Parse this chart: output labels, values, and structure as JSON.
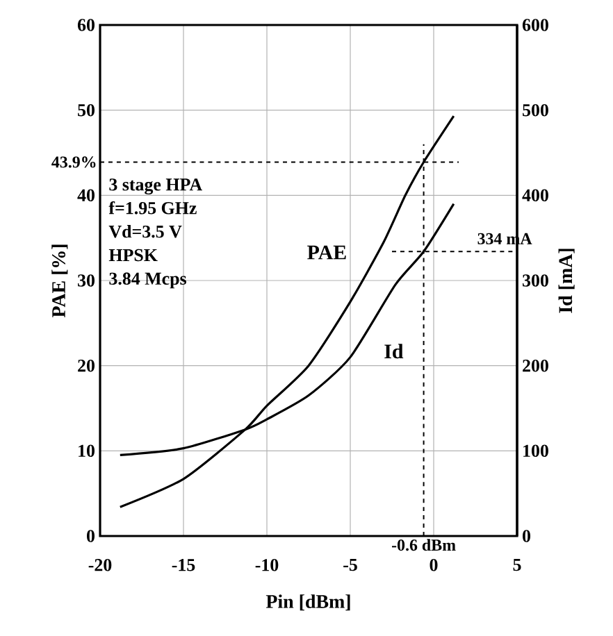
{
  "chart_data": {
    "type": "line",
    "xlabel": "Pin [dBm]",
    "ylabel": "PAE [%]",
    "y2label": "Id [mA]",
    "xlim": [
      -20,
      5
    ],
    "xticks": [
      -20,
      -15,
      -10,
      -5,
      0,
      5
    ],
    "ylim": [
      0,
      60
    ],
    "yticks": [
      0,
      10,
      20,
      30,
      40,
      50,
      60
    ],
    "y2lim": [
      0,
      600
    ],
    "y2ticks": [
      0,
      100,
      200,
      300,
      400,
      500,
      600
    ],
    "grid": true,
    "marker": "none",
    "line_style": "solid",
    "series": [
      {
        "name": "PAE",
        "color": "#000000",
        "x": [
          -18.8,
          -15,
          -11.3,
          -10,
          -7.5,
          -5,
          -3,
          -1.7,
          -0.6,
          1.2
        ],
        "values": [
          3.4,
          6.7,
          12.5,
          15.3,
          20,
          27.5,
          34.5,
          40,
          43.9,
          49.3
        ]
      },
      {
        "name": "Id",
        "color": "#000000",
        "axis": "y2",
        "x": [
          -18.8,
          -15,
          -11.3,
          -10,
          -7.5,
          -5,
          -2.3,
          -0.6,
          1.2
        ],
        "values": [
          95,
          103,
          125,
          137,
          165,
          210,
          295,
          334,
          390
        ]
      }
    ],
    "ref_lines": [
      {
        "axis": "x",
        "value": -0.6,
        "label": "-0.6 dBm",
        "line_style": "dashed"
      },
      {
        "axis": "y",
        "value": 43.9,
        "label": "43.9%",
        "line_style": "dashed"
      },
      {
        "axis": "y2",
        "value": 334,
        "label": "334 mA",
        "line_style": "dashed"
      }
    ],
    "annotations": [
      "3 stage HPA",
      "f=1.95 GHz",
      "Vd=3.5 V",
      "HPSK",
      "3.84 Mcps"
    ]
  }
}
